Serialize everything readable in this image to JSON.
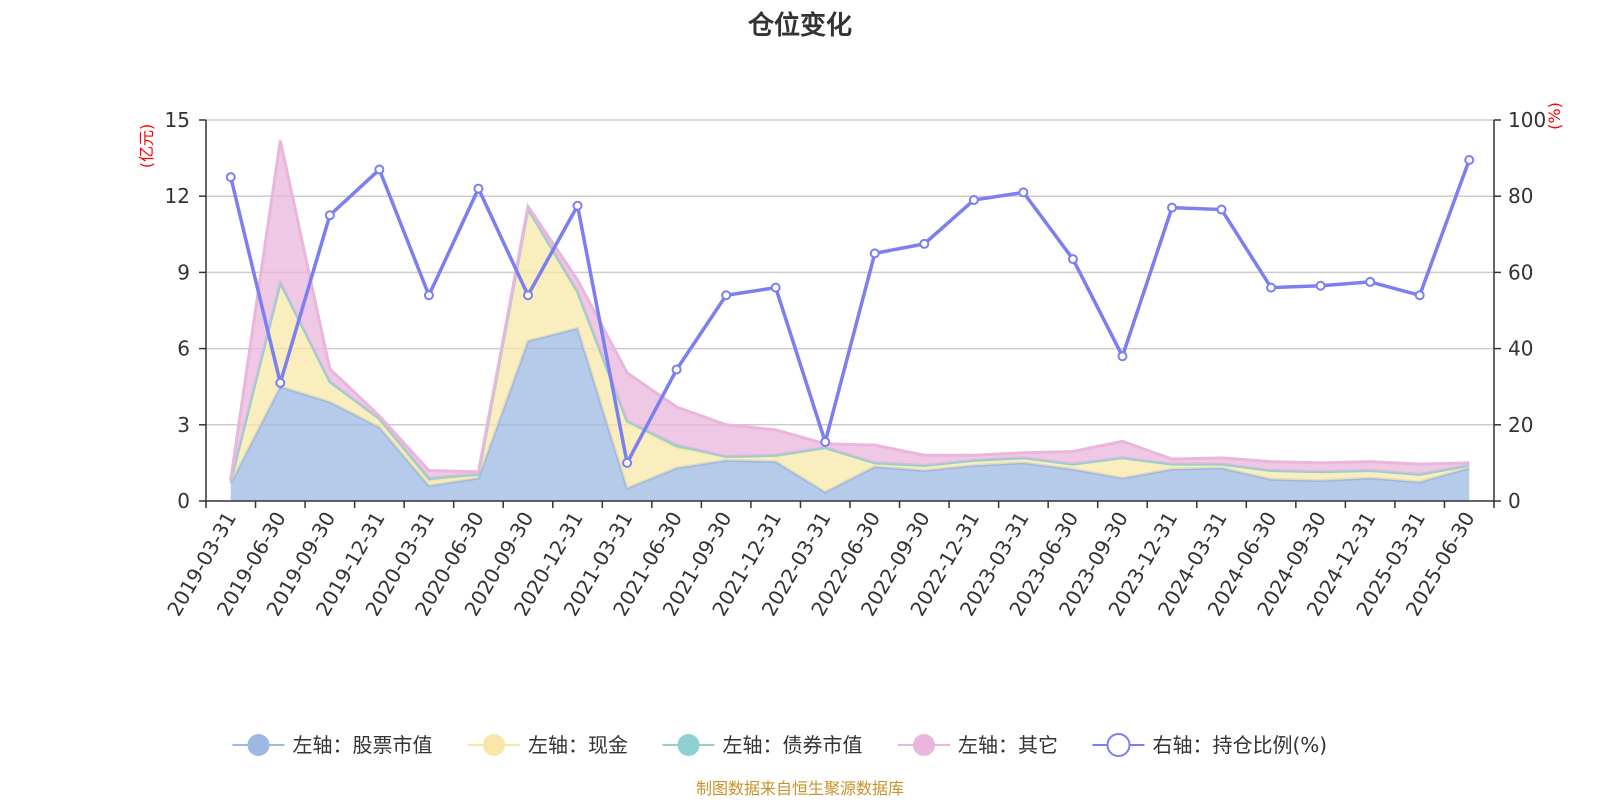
{
  "chart_data": {
    "type": "area",
    "title": "仓位变化",
    "left_axis": {
      "unit": "(亿元)",
      "ylim": [
        0,
        15
      ],
      "ticks": [
        0,
        3,
        6,
        9,
        12,
        15
      ]
    },
    "right_axis": {
      "unit": "(%)",
      "ylim": [
        0,
        100
      ],
      "ticks": [
        0,
        20,
        40,
        60,
        80,
        100
      ]
    },
    "categories": [
      "2019-03-31",
      "2019-06-30",
      "2019-09-30",
      "2019-12-31",
      "2020-03-31",
      "2020-06-30",
      "2020-09-30",
      "2020-12-31",
      "2021-03-31",
      "2021-06-30",
      "2021-09-30",
      "2021-12-31",
      "2022-03-31",
      "2022-06-30",
      "2022-09-30",
      "2022-12-31",
      "2023-03-31",
      "2023-06-30",
      "2023-09-30",
      "2023-12-31",
      "2024-03-31",
      "2024-06-30",
      "2024-09-30",
      "2024-12-31",
      "2025-03-31",
      "2025-06-30"
    ],
    "stacked": true,
    "grid": true,
    "legend_position": "bottom",
    "series": [
      {
        "name": "左轴：股票市值",
        "axis": "left",
        "color": "#9db8e3",
        "values": [
          0.7,
          4.5,
          3.9,
          2.9,
          0.6,
          0.9,
          6.3,
          6.8,
          0.5,
          1.3,
          1.6,
          1.55,
          0.35,
          1.35,
          1.2,
          1.4,
          1.5,
          1.25,
          0.9,
          1.25,
          1.3,
          0.85,
          0.8,
          0.9,
          0.75,
          1.3
        ]
      },
      {
        "name": "左轴：现金",
        "axis": "left",
        "color": "#f8e7a8",
        "values": [
          0.1,
          4.1,
          0.8,
          0.3,
          0.2,
          0.15,
          5.2,
          1.4,
          2.6,
          0.8,
          0.15,
          0.2,
          1.75,
          0.15,
          0.2,
          0.2,
          0.2,
          0.2,
          0.8,
          0.2,
          0.15,
          0.35,
          0.35,
          0.3,
          0.3,
          0.1
        ]
      },
      {
        "name": "左轴：债券市值",
        "axis": "left",
        "color": "#8fd1d0",
        "values": [
          0.0,
          0.0,
          0.0,
          0.05,
          0.1,
          0.0,
          0.0,
          0.05,
          0.05,
          0.1,
          0.0,
          0.05,
          0.0,
          0.0,
          0.0,
          0.0,
          0.0,
          0.0,
          0.0,
          0.0,
          0.0,
          0.0,
          0.0,
          0.0,
          0.0,
          0.0
        ]
      },
      {
        "name": "左轴：其它",
        "axis": "left",
        "color": "#eab6dc",
        "values": [
          0.05,
          5.6,
          0.5,
          0.1,
          0.3,
          0.1,
          0.1,
          0.45,
          1.9,
          1.5,
          1.25,
          1.0,
          0.15,
          0.7,
          0.4,
          0.2,
          0.2,
          0.5,
          0.65,
          0.2,
          0.25,
          0.35,
          0.35,
          0.35,
          0.4,
          0.1
        ]
      },
      {
        "name": "右轴：持仓比例(%)",
        "axis": "right",
        "type": "line",
        "color": "#7b7ff0",
        "values": [
          85,
          31,
          75,
          87,
          54,
          82,
          54,
          77.5,
          10,
          34.5,
          54,
          56,
          15.5,
          65,
          67.5,
          79,
          81,
          63.5,
          38,
          77,
          76.5,
          56,
          56.5,
          57.5,
          54,
          89.5
        ]
      }
    ],
    "source": "制图数据来自恒生聚源数据库"
  }
}
